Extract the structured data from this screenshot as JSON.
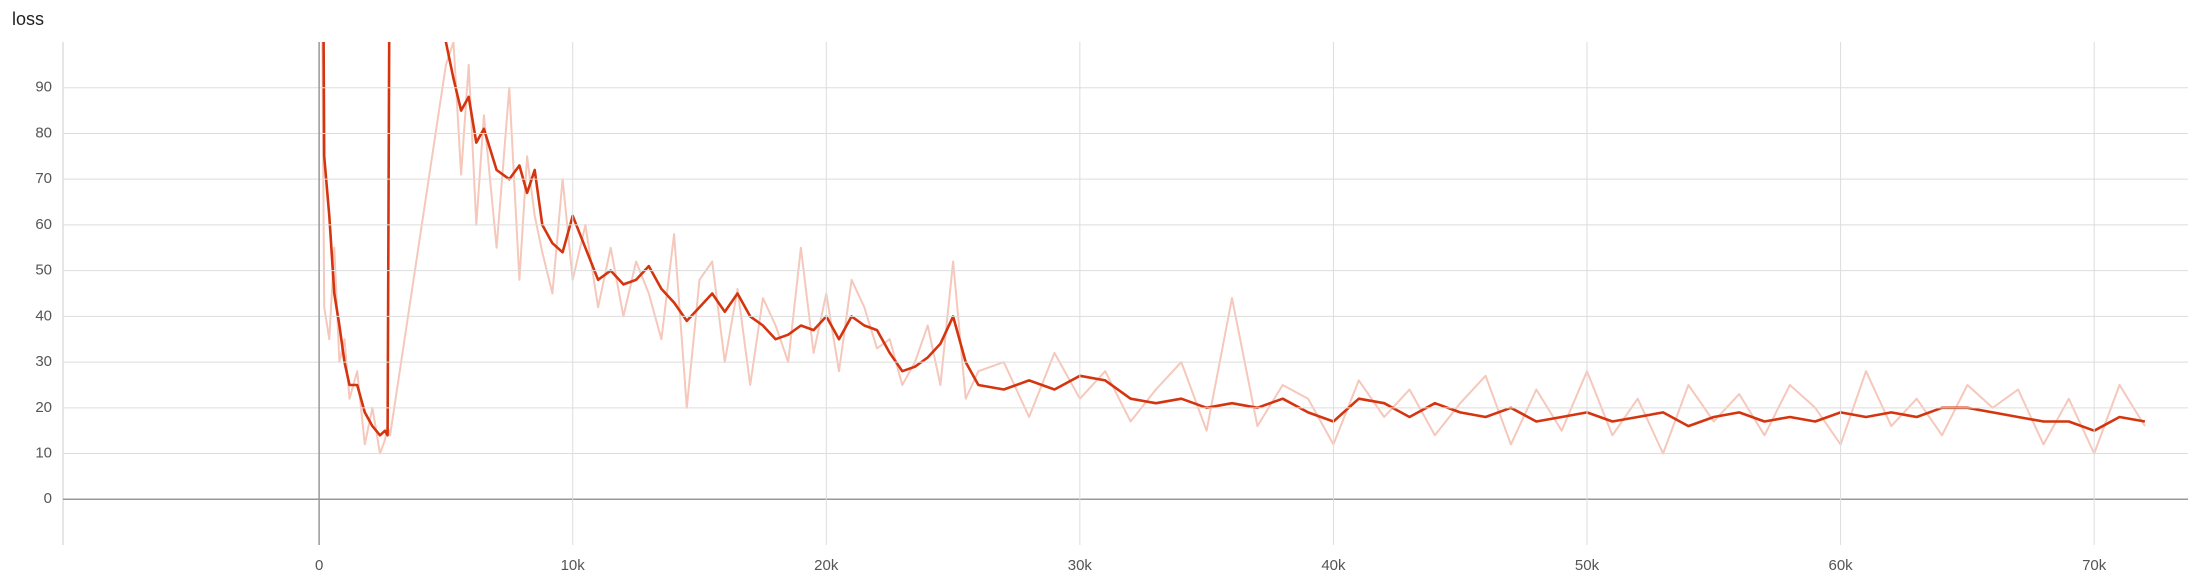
{
  "chart_data": {
    "type": "line",
    "title": "loss",
    "x": [
      100,
      200,
      400,
      600,
      800,
      1000,
      1200,
      1500,
      1800,
      2100,
      2400,
      2600,
      2700,
      2800,
      5000,
      5300,
      5600,
      5900,
      6200,
      6500,
      7000,
      7500,
      7900,
      8200,
      8500,
      8800,
      9200,
      9600,
      10000,
      10500,
      11000,
      11500,
      12000,
      12500,
      13000,
      13500,
      14000,
      14500,
      15000,
      15500,
      16000,
      16500,
      17000,
      17500,
      18000,
      18500,
      19000,
      19500,
      20000,
      20500,
      21000,
      21500,
      22000,
      22500,
      23000,
      23500,
      24000,
      24500,
      25000,
      25500,
      26000,
      27000,
      28000,
      29000,
      30000,
      31000,
      32000,
      33000,
      34000,
      35000,
      36000,
      37000,
      38000,
      39000,
      40000,
      41000,
      42000,
      43000,
      44000,
      45000,
      46000,
      47000,
      48000,
      49000,
      50000,
      51000,
      52000,
      53000,
      54000,
      55000,
      56000,
      57000,
      58000,
      59000,
      60000,
      61000,
      62000,
      63000,
      64000,
      65000,
      66000,
      67000,
      68000,
      69000,
      70000,
      71000,
      72000
    ],
    "series": [
      {
        "color": "#f5c8bb",
        "values": [
          120,
          42,
          35,
          55,
          30,
          35,
          22,
          28,
          12,
          20,
          10,
          13,
          16,
          14,
          95,
          100,
          71,
          95,
          60,
          84,
          55,
          90,
          48,
          75,
          62,
          54,
          45,
          70,
          48,
          60,
          42,
          55,
          40,
          52,
          45,
          35,
          58,
          20,
          48,
          52,
          30,
          46,
          25,
          44,
          38,
          30,
          55,
          32,
          45,
          28,
          48,
          42,
          33,
          35,
          25,
          30,
          38,
          25,
          52,
          22,
          28,
          30,
          18,
          32,
          22,
          28,
          17,
          24,
          30,
          15,
          44,
          16,
          25,
          22,
          12,
          26,
          18,
          24,
          14,
          21,
          27,
          12,
          24,
          15,
          28,
          14,
          22,
          10,
          25,
          17,
          23,
          14,
          25,
          20,
          12,
          28,
          16,
          22,
          14,
          25,
          20,
          24,
          12,
          22,
          10,
          25,
          16
        ]
      },
      {
        "color": "#d4350f",
        "values": [
          180,
          75,
          62,
          45,
          38,
          30,
          25,
          25,
          19,
          16,
          14,
          15,
          14,
          150,
          100,
          92,
          85,
          88,
          78,
          81,
          72,
          70,
          73,
          67,
          72,
          60,
          56,
          54,
          62,
          55,
          48,
          50,
          47,
          48,
          51,
          46,
          43,
          39,
          42,
          45,
          41,
          45,
          40,
          38,
          35,
          36,
          38,
          37,
          40,
          35,
          40,
          38,
          37,
          32,
          28,
          29,
          31,
          34,
          40,
          30,
          25,
          24,
          26,
          24,
          27,
          26,
          22,
          21,
          22,
          20,
          21,
          20,
          22,
          19,
          17,
          22,
          21,
          18,
          21,
          19,
          18,
          20,
          17,
          18,
          19,
          17,
          18,
          19,
          16,
          18,
          19,
          17,
          18,
          17,
          19,
          18,
          19,
          18,
          20,
          20,
          19,
          18,
          17,
          17,
          15,
          18,
          17
        ]
      }
    ],
    "xlim": [
      -10100,
      73700
    ],
    "ylim": [
      -10,
      100
    ],
    "xticks": [
      0,
      {
        "value": 10000,
        "label": "10k"
      },
      {
        "value": 20000,
        "label": "20k"
      },
      {
        "value": 30000,
        "label": "30k"
      },
      {
        "value": 40000,
        "label": "40k"
      },
      {
        "value": 50000,
        "label": "50k"
      },
      {
        "value": 60000,
        "label": "60k"
      },
      {
        "value": 70000,
        "label": "70k"
      }
    ],
    "yticks": [
      0,
      10,
      20,
      30,
      40,
      50,
      60,
      70,
      80,
      90
    ],
    "grid": true
  }
}
